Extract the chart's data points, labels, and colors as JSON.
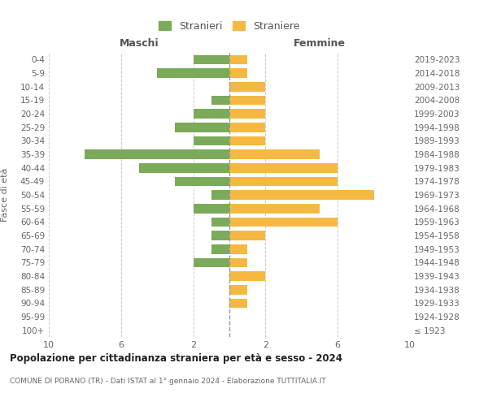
{
  "age_groups": [
    "100+",
    "95-99",
    "90-94",
    "85-89",
    "80-84",
    "75-79",
    "70-74",
    "65-69",
    "60-64",
    "55-59",
    "50-54",
    "45-49",
    "40-44",
    "35-39",
    "30-34",
    "25-29",
    "20-24",
    "15-19",
    "10-14",
    "5-9",
    "0-4"
  ],
  "birth_years": [
    "≤ 1923",
    "1924-1928",
    "1929-1933",
    "1934-1938",
    "1939-1943",
    "1944-1948",
    "1949-1953",
    "1954-1958",
    "1959-1963",
    "1964-1968",
    "1969-1973",
    "1974-1978",
    "1979-1983",
    "1984-1988",
    "1989-1993",
    "1994-1998",
    "1999-2003",
    "2004-2008",
    "2009-2013",
    "2014-2018",
    "2019-2023"
  ],
  "maschi": [
    0,
    0,
    0,
    0,
    0,
    2,
    1,
    1,
    1,
    2,
    1,
    3,
    5,
    8,
    2,
    3,
    2,
    1,
    0,
    4,
    2
  ],
  "femmine": [
    0,
    0,
    1,
    1,
    2,
    1,
    1,
    2,
    6,
    5,
    8,
    6,
    6,
    5,
    2,
    2,
    2,
    2,
    2,
    1,
    1
  ],
  "bar_color_maschi": "#7aaa5a",
  "bar_color_femmine": "#f5b942",
  "title": "Popolazione per cittadinanza straniera per età e sesso - 2024",
  "subtitle": "COMUNE DI PORANO (TR) - Dati ISTAT al 1° gennaio 2024 - Elaborazione TUTTITALIA.IT",
  "xlabel_left": "Maschi",
  "xlabel_right": "Femmine",
  "ylabel_left": "Fasce di età",
  "legend_maschi": "Stranieri",
  "legend_femmine": "Straniere",
  "xlim": 10,
  "bg_color": "#ffffff",
  "grid_color": "#cccccc"
}
